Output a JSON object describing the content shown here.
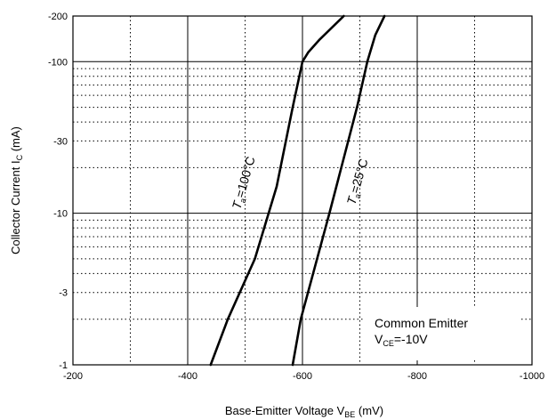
{
  "chart_data": {
    "type": "line",
    "x_axis": {
      "title_main": "Base-Emitter Voltage V",
      "title_sub": "BE",
      "title_unit": " (mV)",
      "range": [
        -200,
        -1000
      ],
      "ticks": [
        -200,
        -400,
        -600,
        -800,
        -1000
      ],
      "tick_labels": [
        "-200",
        "-400",
        "-600",
        "-800",
        "-1000"
      ]
    },
    "y_axis": {
      "title_main": "Collector Current  I",
      "title_sub": "C",
      "title_unit": " (mA)",
      "scale": "log",
      "range": [
        -1,
        -200
      ],
      "ticks": [
        -1,
        -3,
        -10,
        -30,
        -100,
        -200
      ],
      "tick_labels": [
        "-1",
        "-3",
        "-10",
        "-30",
        "-100",
        "-200"
      ]
    },
    "grid": true,
    "series": [
      {
        "name_main": "T",
        "name_sub": "a",
        "name_rest": "=100°C",
        "x": [
          -440,
          -470,
          -517,
          -555,
          -583,
          -600,
          -610,
          -630,
          -672
        ],
        "y": [
          -1,
          -2,
          -5,
          -15,
          -50,
          -100,
          -115,
          -140,
          -200
        ]
      },
      {
        "name_main": "T",
        "name_sub": "a",
        "name_rest": "=25°C",
        "x": [
          -583,
          -597,
          -647,
          -695,
          -713,
          -727,
          -743
        ],
        "y": [
          -1,
          -2,
          -10,
          -50,
          -100,
          -150,
          -200
        ]
      }
    ],
    "annotations": {
      "line1": "Common Emitter",
      "line2_main": "V",
      "line2_sub": "CE",
      "line2_rest": "=-10V"
    }
  }
}
